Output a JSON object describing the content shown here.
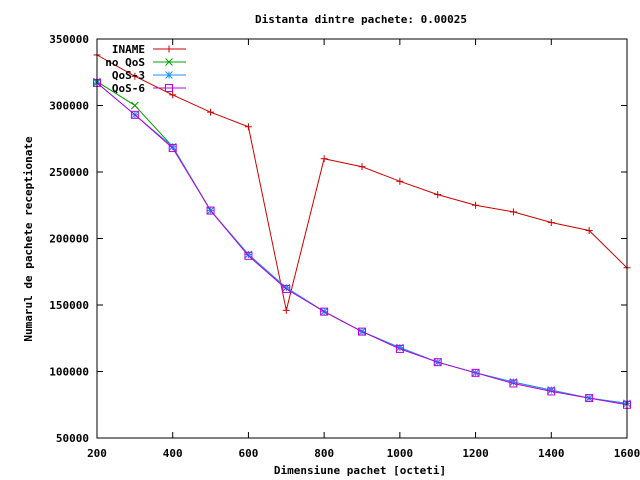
{
  "chart_data": {
    "type": "line",
    "title": "Distanta dintre pachete: 0.00025",
    "xlabel": "Dimensiune pachet [octeti]",
    "ylabel": "Numarul de pachete receptionate",
    "xlim": [
      200,
      1600
    ],
    "ylim": [
      50000,
      350000
    ],
    "xticks": [
      200,
      400,
      600,
      800,
      1000,
      1200,
      1400,
      1600
    ],
    "yticks": [
      50000,
      100000,
      150000,
      200000,
      250000,
      300000,
      350000
    ],
    "x": [
      200,
      300,
      400,
      500,
      600,
      700,
      800,
      900,
      1000,
      1100,
      1200,
      1300,
      1400,
      1500,
      1600
    ],
    "legend_position": "top-left",
    "grid": false,
    "series": [
      {
        "name": "INAME",
        "color": "#cc0000",
        "marker": "plus",
        "values": [
          338000,
          322000,
          308000,
          295000,
          284000,
          146000,
          260000,
          254000,
          243000,
          233000,
          225000,
          220000,
          212000,
          206000,
          178000
        ]
      },
      {
        "name": "no QoS",
        "color": "#00a000",
        "marker": "cross",
        "values": [
          318000,
          300000,
          269000,
          221000,
          188000,
          163000,
          145000,
          130000,
          118000,
          107000,
          99000,
          92000,
          86000,
          80000,
          76000
        ]
      },
      {
        "name": "QoS-3",
        "color": "#1e90ff",
        "marker": "star",
        "values": [
          317000,
          293000,
          269000,
          221000,
          188000,
          163000,
          145000,
          130000,
          118000,
          107000,
          99000,
          92000,
          86000,
          80000,
          76000
        ]
      },
      {
        "name": "QoS-6",
        "color": "#bb00dd",
        "marker": "square",
        "values": [
          317000,
          293000,
          268000,
          221000,
          187000,
          162000,
          145000,
          130000,
          117000,
          107000,
          99000,
          91000,
          85000,
          80000,
          75000
        ]
      }
    ]
  }
}
